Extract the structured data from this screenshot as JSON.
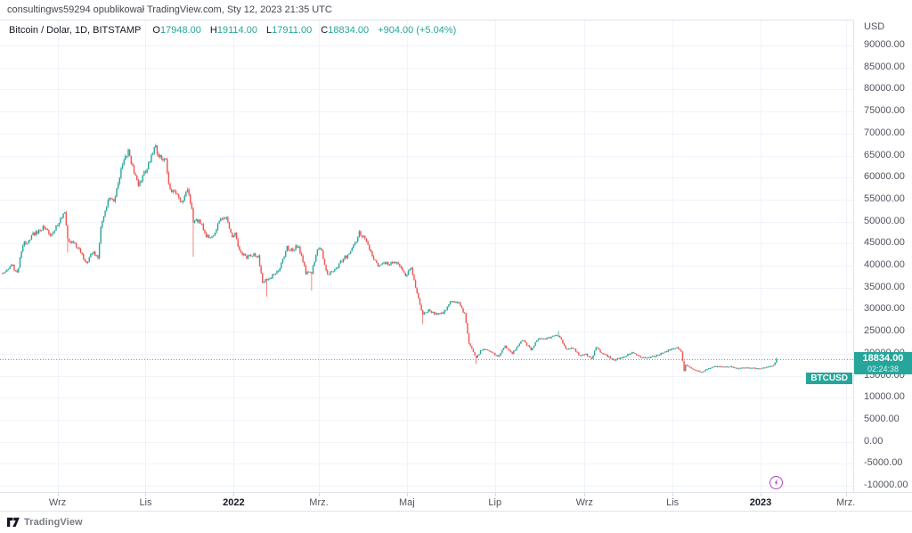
{
  "attribution": "consultingws59294 opublikował TradingView.com, Sty 12, 2023 21:35 UTC",
  "legend": {
    "title": "Bitcoin / Dolar, 1D, BITSTAMP",
    "ohlc": [
      {
        "k": "O",
        "v": "17948.00"
      },
      {
        "k": "H",
        "v": "19114.00"
      },
      {
        "k": "L",
        "v": "17911.00"
      },
      {
        "k": "C",
        "v": "18834.00"
      }
    ],
    "change": "+904.00 (+5.04%)"
  },
  "price_axis": {
    "currency": "USD",
    "labels": [
      "90000.00",
      "85000.00",
      "80000.00",
      "75000.00",
      "70000.00",
      "65000.00",
      "60000.00",
      "55000.00",
      "50000.00",
      "45000.00",
      "40000.00",
      "35000.00",
      "30000.00",
      "25000.00",
      "20000.00",
      "15000.00",
      "10000.00",
      "5000.00",
      "0.00",
      "-5000.00",
      "-10000.00"
    ]
  },
  "last_price": {
    "symbol": "BTCUSD",
    "price": "18834.00",
    "countdown": "02:24:38",
    "value": 18834
  },
  "footer": {
    "brand": "TradingView"
  },
  "colors": {
    "up": "#26a69a",
    "down": "#ef5350",
    "grid": "#f0f3fa",
    "axis_border": "#e0e3eb",
    "text": "#131722",
    "axis_text": "#51555f",
    "label_bg": "#26a69a",
    "marker_purple": "#ab47bc"
  },
  "chart_data": {
    "type": "candlestick",
    "symbol": "BTCUSD",
    "exchange": "BITSTAMP",
    "interval": "1D",
    "title": "Bitcoin / Dolar, 1D, BITSTAMP",
    "ylabel": "USD",
    "ylim": [
      -10000,
      90000
    ],
    "y_step": 5000,
    "grid": true,
    "start_date": "2021-07-25",
    "end_date": "2023-01-12",
    "last_candle": {
      "open": 17948,
      "high": 19114,
      "low": 17911,
      "close": 18834,
      "change": 904,
      "change_pct": 5.04
    },
    "x_ticks": [
      {
        "label": "Wrz",
        "day": 38,
        "year": false
      },
      {
        "label": "Lis",
        "day": 99,
        "year": false
      },
      {
        "label": "2022",
        "day": 160,
        "year": true
      },
      {
        "label": "Mrz.",
        "day": 219,
        "year": false
      },
      {
        "label": "Maj",
        "day": 280,
        "year": false
      },
      {
        "label": "Lip",
        "day": 341,
        "year": false
      },
      {
        "label": "Wrz",
        "day": 403,
        "year": false
      },
      {
        "label": "Lis",
        "day": 464,
        "year": false
      },
      {
        "label": "2023",
        "day": 525,
        "year": true
      },
      {
        "label": "Mrz.",
        "day": 584,
        "year": false
      }
    ],
    "anchors": [
      [
        0,
        38500
      ],
      [
        4,
        39400
      ],
      [
        7,
        39900
      ],
      [
        10,
        38200
      ],
      [
        14,
        44600
      ],
      [
        21,
        47000
      ],
      [
        28,
        48900
      ],
      [
        33,
        46800
      ],
      [
        39,
        49900
      ],
      [
        43,
        52700
      ],
      [
        45,
        46100
      ],
      [
        50,
        44900
      ],
      [
        58,
        40700
      ],
      [
        63,
        43200
      ],
      [
        66,
        41500
      ],
      [
        68,
        48200
      ],
      [
        73,
        55300
      ],
      [
        77,
        54700
      ],
      [
        82,
        61600
      ],
      [
        87,
        66000
      ],
      [
        91,
        60900
      ],
      [
        94,
        58500
      ],
      [
        99,
        61300
      ],
      [
        106,
        67500
      ],
      [
        108,
        64900
      ],
      [
        110,
        64400
      ],
      [
        113,
        63600
      ],
      [
        116,
        56900
      ],
      [
        120,
        56300
      ],
      [
        124,
        53800
      ],
      [
        128,
        57000
      ],
      [
        131,
        53600
      ],
      [
        132,
        49400
      ],
      [
        136,
        50500
      ],
      [
        141,
        46700
      ],
      [
        145,
        46200
      ],
      [
        151,
        50800
      ],
      [
        155,
        50700
      ],
      [
        159,
        46200
      ],
      [
        161,
        47300
      ],
      [
        164,
        43400
      ],
      [
        169,
        41800
      ],
      [
        172,
        42600
      ],
      [
        177,
        42200
      ],
      [
        180,
        36400
      ],
      [
        183,
        36600
      ],
      [
        187,
        37700
      ],
      [
        191,
        38700
      ],
      [
        197,
        44000
      ],
      [
        200,
        43500
      ],
      [
        205,
        44500
      ],
      [
        210,
        38300
      ],
      [
        214,
        38300
      ],
      [
        218,
        43200
      ],
      [
        220,
        44400
      ],
      [
        225,
        38000
      ],
      [
        232,
        39600
      ],
      [
        236,
        41700
      ],
      [
        240,
        42300
      ],
      [
        247,
        47400
      ],
      [
        251,
        46000
      ],
      [
        255,
        43200
      ],
      [
        260,
        39500
      ],
      [
        263,
        40500
      ],
      [
        270,
        40500
      ],
      [
        274,
        40400
      ],
      [
        279,
        37700
      ],
      [
        283,
        39700
      ],
      [
        287,
        34000
      ],
      [
        290,
        30100
      ],
      [
        291,
        29000
      ],
      [
        295,
        29800
      ],
      [
        299,
        29200
      ],
      [
        305,
        29000
      ],
      [
        310,
        31700
      ],
      [
        316,
        31300
      ],
      [
        320,
        29000
      ],
      [
        323,
        22400
      ],
      [
        326,
        20400
      ],
      [
        328,
        19000
      ],
      [
        331,
        20700
      ],
      [
        336,
        21000
      ],
      [
        340,
        19900
      ],
      [
        343,
        19300
      ],
      [
        348,
        21600
      ],
      [
        353,
        20100
      ],
      [
        360,
        23200
      ],
      [
        366,
        21000
      ],
      [
        371,
        23300
      ],
      [
        376,
        23300
      ],
      [
        381,
        23900
      ],
      [
        385,
        24300
      ],
      [
        390,
        20900
      ],
      [
        395,
        21400
      ],
      [
        399,
        19600
      ],
      [
        404,
        19800
      ],
      [
        408,
        18800
      ],
      [
        411,
        21300
      ],
      [
        415,
        20200
      ],
      [
        418,
        19700
      ],
      [
        423,
        18500
      ],
      [
        429,
        19100
      ],
      [
        436,
        20300
      ],
      [
        443,
        19100
      ],
      [
        450,
        19300
      ],
      [
        457,
        20100
      ],
      [
        461,
        20800
      ],
      [
        467,
        21300
      ],
      [
        470,
        20600
      ],
      [
        472,
        15900
      ],
      [
        473,
        17600
      ],
      [
        477,
        16600
      ],
      [
        484,
        15800
      ],
      [
        488,
        16500
      ],
      [
        493,
        17100
      ],
      [
        498,
        17000
      ],
      [
        504,
        17100
      ],
      [
        509,
        16600
      ],
      [
        513,
        16900
      ],
      [
        518,
        16800
      ],
      [
        524,
        16550
      ],
      [
        528,
        16850
      ],
      [
        532,
        17100
      ],
      [
        534,
        17450
      ],
      [
        535,
        17948
      ],
      [
        536,
        18834
      ]
    ],
    "wick_events": [
      {
        "day": 45,
        "low": 43000
      },
      {
        "day": 132,
        "low": 42000
      },
      {
        "day": 183,
        "low": 33000
      },
      {
        "day": 214,
        "low": 34300
      },
      {
        "day": 291,
        "low": 26700
      },
      {
        "day": 328,
        "low": 17600
      },
      {
        "day": 385,
        "high": 25200
      }
    ],
    "publish_marker_day": 536
  }
}
